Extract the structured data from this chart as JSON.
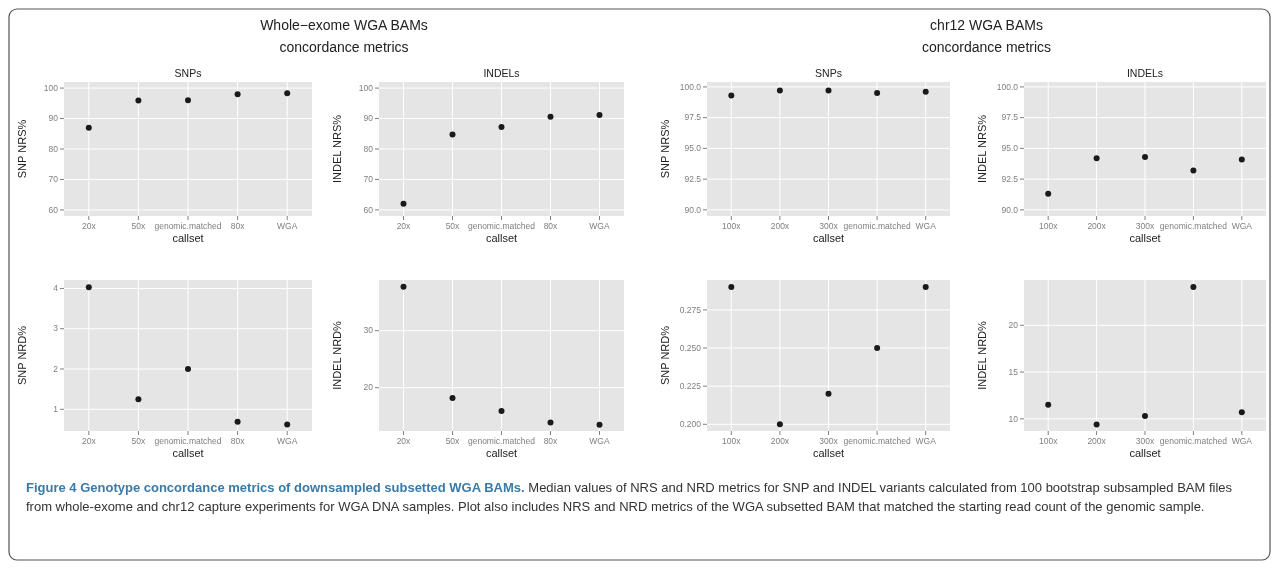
{
  "chart_data": [
    {
      "type": "scatter",
      "title": "Whole−exome WGA BAMs\nconcordance metrics",
      "subtitle": "SNPs",
      "categories": [
        "20x",
        "50x",
        "genomic.matched",
        "80x",
        "WGA"
      ],
      "values": [
        87,
        95.9,
        96,
        98,
        98.3
      ],
      "color": "#1a1a1a",
      "ylim": [
        58,
        102
      ],
      "yticks": [
        60,
        70,
        80,
        90,
        100
      ],
      "xlabel": "callset",
      "ylabel": "SNP NRS%",
      "grid": true,
      "marker": "circle"
    },
    {
      "type": "scatter",
      "subtitle": "INDELs",
      "categories": [
        "20x",
        "50x",
        "genomic.matched",
        "80x",
        "WGA"
      ],
      "values": [
        62,
        84.8,
        87.2,
        90.6,
        91.2
      ],
      "color": "#1a1a1a",
      "ylim": [
        58,
        102
      ],
      "yticks": [
        60,
        70,
        80,
        90,
        100
      ],
      "xlabel": "callset",
      "ylabel": "INDEL NRS%",
      "grid": true,
      "marker": "circle"
    },
    {
      "type": "scatter",
      "title": "chr12 WGA BAMs\nconcordance metrics",
      "subtitle": "SNPs",
      "categories": [
        "100x",
        "200x",
        "300x",
        "genomic.matched",
        "WGA"
      ],
      "values": [
        99.3,
        99.7,
        99.7,
        99.5,
        99.6
      ],
      "color": "#1a1a1a",
      "ylim": [
        89.5,
        100.4
      ],
      "yticks": [
        {
          "value": 90,
          "label": "90.0"
        },
        {
          "value": 92.5,
          "label": "92.5"
        },
        {
          "value": 95,
          "label": "95.0"
        },
        {
          "value": 97.5,
          "label": "97.5"
        },
        {
          "value": 100,
          "label": "100.0"
        }
      ],
      "xlabel": "callset",
      "ylabel": "SNP NRS%",
      "grid": true,
      "marker": "circle"
    },
    {
      "type": "scatter",
      "subtitle": "INDELs",
      "categories": [
        "100x",
        "200x",
        "300x",
        "genomic.matched",
        "WGA"
      ],
      "values": [
        91.3,
        94.2,
        94.3,
        93.2,
        94.1
      ],
      "color": "#1a1a1a",
      "ylim": [
        89.5,
        100.4
      ],
      "yticks": [
        {
          "value": 90,
          "label": "90.0"
        },
        {
          "value": 92.5,
          "label": "92.5"
        },
        {
          "value": 95,
          "label": "95.0"
        },
        {
          "value": 97.5,
          "label": "97.5"
        },
        {
          "value": 100,
          "label": "100.0"
        }
      ],
      "xlabel": "callset",
      "ylabel": "INDEL NRS%",
      "grid": true,
      "marker": "circle"
    },
    {
      "type": "scatter",
      "categories": [
        "20x",
        "50x",
        "genomic.matched",
        "80x",
        "WGA"
      ],
      "values": [
        4.03,
        1.25,
        2.0,
        0.69,
        0.62
      ],
      "color": "#1a1a1a",
      "ylim": [
        0.46,
        4.21
      ],
      "yticks": [
        1,
        2,
        3,
        4
      ],
      "xlabel": "callset",
      "ylabel": "SNP NRD%",
      "grid": true,
      "marker": "circle"
    },
    {
      "type": "scatter",
      "categories": [
        "20x",
        "50x",
        "genomic.matched",
        "80x",
        "WGA"
      ],
      "values": [
        37.7,
        18.2,
        15.9,
        13.9,
        13.5
      ],
      "color": "#1a1a1a",
      "ylim": [
        12.4,
        38.9
      ],
      "yticks": [
        20,
        30
      ],
      "xlabel": "callset",
      "ylabel": "INDEL NRD%",
      "grid": true,
      "marker": "circle"
    },
    {
      "type": "scatter",
      "categories": [
        "100x",
        "200x",
        "300x",
        "genomic.matched",
        "WGA"
      ],
      "values": [
        0.29,
        0.2,
        0.22,
        0.25,
        0.29
      ],
      "color": "#1a1a1a",
      "ylim": [
        0.1956,
        0.2946
      ],
      "yticks": [
        {
          "value": 0.2,
          "label": "0.200"
        },
        {
          "value": 0.225,
          "label": "0.225"
        },
        {
          "value": 0.25,
          "label": "0.250"
        },
        {
          "value": 0.275,
          "label": "0.275"
        }
      ],
      "xlabel": "callset",
      "ylabel": "SNP NRD%",
      "grid": true,
      "marker": "circle"
    },
    {
      "type": "scatter",
      "categories": [
        "100x",
        "200x",
        "300x",
        "genomic.matched",
        "WGA"
      ],
      "values": [
        11.5,
        9.4,
        10.3,
        24.1,
        10.7
      ],
      "color": "#1a1a1a",
      "ylim": [
        8.7,
        24.84
      ],
      "yticks": [
        10,
        15,
        20
      ],
      "xlabel": "callset",
      "ylabel": "INDEL NRD%",
      "grid": true,
      "marker": "circle"
    },
    {
      "type": "other",
      "title": "Figure 4 Genotype concordance metrics of downsampled subsetted WGA BAMs.",
      "annotations": [
        "Median values of NRS and NRD metrics for SNP and INDEL variants calculated from 100 bootstrap subsampled BAM files from whole-exome and chr12 capture experiments for WGA DNA samples. Plot also includes NRS and NRD metrics of the WGA subsetted BAM that matched the starting read count of the genomic sample."
      ]
    }
  ]
}
